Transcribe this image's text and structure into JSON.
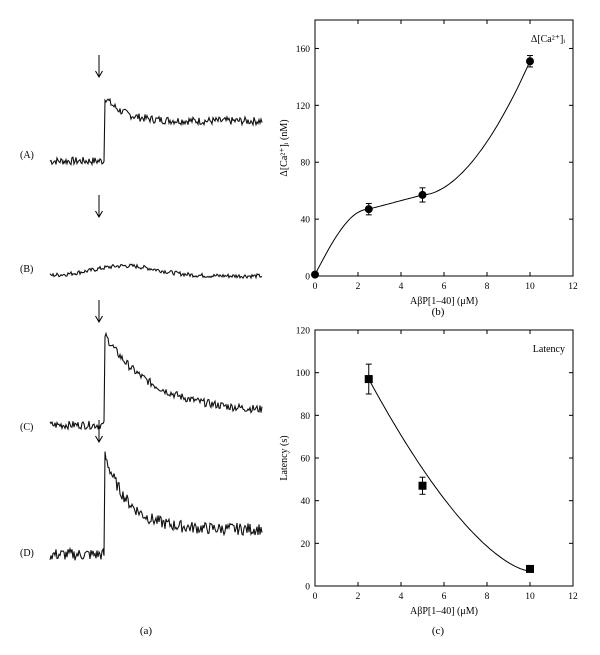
{
  "panel_labels": {
    "a": "(a)",
    "b": "(b)",
    "c": "(c)"
  },
  "traces": [
    {
      "label": "(A)",
      "baseline": 0.05,
      "peak": 0.85,
      "plateau": 0.55,
      "decay_tau": 0.35,
      "noise": 0.05
    },
    {
      "label": "(B)",
      "baseline": 0.15,
      "peak": 0.32,
      "plateau": 0.15,
      "decay_tau": 0.6,
      "noise": 0.035
    },
    {
      "label": "(C)",
      "baseline": 0.05,
      "peak": 0.95,
      "plateau": 0.18,
      "decay_tau": 0.9,
      "noise": 0.04
    },
    {
      "label": "(D)",
      "baseline": 0.05,
      "peak": 0.95,
      "plateau": 0.28,
      "decay_tau": 0.45,
      "noise": 0.055
    }
  ],
  "chart_data": [
    {
      "panel": "(b)",
      "type": "scatter",
      "annotation": "Δ[Ca²⁺]ᵢ",
      "xlabel": "AβP[1–40] (μM)",
      "ylabel": "Δ[Ca²⁺]ᵢ (nM)",
      "xlim": [
        0,
        12
      ],
      "ylim": [
        0,
        180
      ],
      "xticks": [
        0,
        2,
        4,
        6,
        8,
        10,
        12
      ],
      "yticks": [
        0,
        40,
        80,
        120,
        160
      ],
      "marker": "circle",
      "x": [
        0,
        2.5,
        5,
        10
      ],
      "y": [
        1,
        47,
        57,
        151
      ],
      "yerr": [
        0,
        4,
        5,
        4
      ],
      "fit_line": true
    },
    {
      "panel": "(c)",
      "type": "scatter",
      "annotation": "Latency",
      "xlabel": "AβP[1–40] (μM)",
      "ylabel": "Latency (s)",
      "xlim": [
        0,
        12
      ],
      "ylim": [
        0,
        120
      ],
      "xticks": [
        0,
        2,
        4,
        6,
        8,
        10,
        12
      ],
      "yticks": [
        0,
        20,
        40,
        60,
        80,
        100,
        120
      ],
      "marker": "square",
      "x": [
        2.5,
        5,
        10
      ],
      "y": [
        97,
        47,
        8
      ],
      "yerr": [
        7,
        4,
        0
      ],
      "fit_line": true
    }
  ]
}
